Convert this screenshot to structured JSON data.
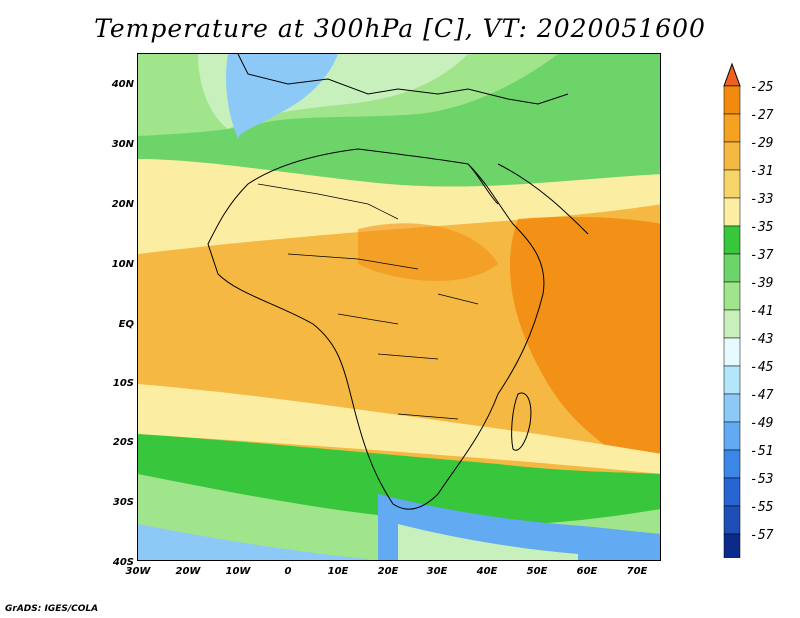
{
  "title": "Temperature at 300hPa [C], VT: 2020051600",
  "footer": "GrADS: IGES/COLA",
  "lat_labels": [
    "40N",
    "30N",
    "20N",
    "10N",
    "EQ",
    "10S",
    "20S",
    "30S",
    "40S"
  ],
  "lon_labels": [
    "30W",
    "20W",
    "10W",
    "0",
    "10E",
    "20E",
    "30E",
    "40E",
    "50E",
    "60E",
    "70E"
  ],
  "map_extent": {
    "lon_min": -30,
    "lon_max": 75,
    "lat_min": -40,
    "lat_max": 45
  },
  "colorbar": {
    "levels": [
      "-25",
      "-27",
      "-29",
      "-31",
      "-33",
      "-35",
      "-37",
      "-39",
      "-41",
      "-43",
      "-45",
      "-47",
      "-49",
      "-51",
      "-53",
      "-55",
      "-57"
    ],
    "colors": [
      "#f06024",
      "#f28a0f",
      "#f5a122",
      "#f5b843",
      "#f7d56a",
      "#fbeea3",
      "#38c63c",
      "#6dd46a",
      "#a0e48c",
      "#c8f0bc",
      "#e6fbff",
      "#b3e6fa",
      "#8cc9f7",
      "#62aaf2",
      "#3b86e6",
      "#2765d2",
      "#1d4fb6",
      "#0c2a8a",
      "#e8e8ff"
    ]
  },
  "temperature_fields": [
    {
      "band": "north-cold",
      "range": "-39 to -45",
      "color": "#b3e6fa"
    },
    {
      "band": "north-mid",
      "range": "-37 to -39",
      "color": "#6dd46a"
    },
    {
      "band": "tropics",
      "range": "-29 to -33",
      "color": "#f5b843"
    },
    {
      "band": "south-mid",
      "range": "-37 to -41",
      "color": "#38c63c"
    },
    {
      "band": "south-cold",
      "range": "-43 to -51",
      "color": "#62aaf2"
    }
  ]
}
